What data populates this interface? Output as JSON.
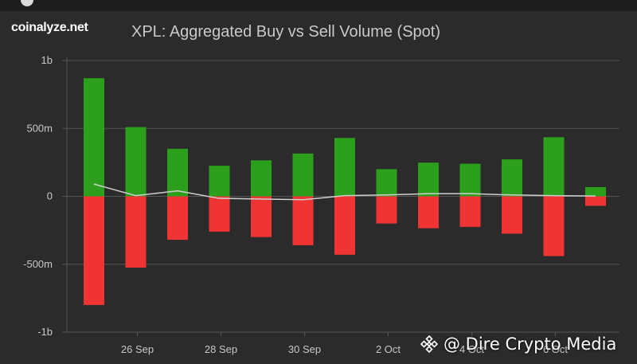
{
  "brand": "coinalyze.net",
  "watermark": {
    "text": "@ Dire Crypto Media",
    "icon": "binance-diamond-icon"
  },
  "colors": {
    "background": "#2b2b2b",
    "buy": "#2ca01c",
    "sell": "#f03434",
    "net_line": "#d0d0d0",
    "grid": "#555555"
  },
  "chart_data": {
    "type": "bar",
    "title": "XPL: Aggregated Buy vs Sell Volume (Spot)",
    "xlabel": "",
    "ylabel": "",
    "ylim": [
      -1000000000,
      1000000000
    ],
    "y_ticks": [
      {
        "value": 1000000000,
        "label": "1b"
      },
      {
        "value": 500000000,
        "label": "500m"
      },
      {
        "value": 0,
        "label": "0"
      },
      {
        "value": -500000000,
        "label": "-500m"
      },
      {
        "value": -1000000000,
        "label": "-1b"
      }
    ],
    "x_tick_labels": [
      "26 Sep",
      "28 Sep",
      "30 Sep",
      "2 Oct",
      "4 Oct",
      "6 Oct"
    ],
    "grid": true,
    "bars_stacked_around_zero": true,
    "series": [
      {
        "values": [
          870000000,
          510000000,
          350000000,
          225000000,
          265000000,
          315000000,
          430000000,
          200000000,
          248000000,
          240000000,
          272000000,
          435000000,
          68000000
        ]
      },
      {
        "values": [
          -800000000,
          -525000000,
          -320000000,
          -260000000,
          -300000000,
          -360000000,
          -430000000,
          -200000000,
          -235000000,
          -225000000,
          -275000000,
          -440000000,
          -70000000
        ]
      },
      {
        "type": "line",
        "values": [
          90000000,
          5000000,
          40000000,
          -15000000,
          -20000000,
          -25000000,
          5000000,
          10000000,
          20000000,
          20000000,
          10000000,
          5000000,
          2000000
        ]
      }
    ]
  }
}
